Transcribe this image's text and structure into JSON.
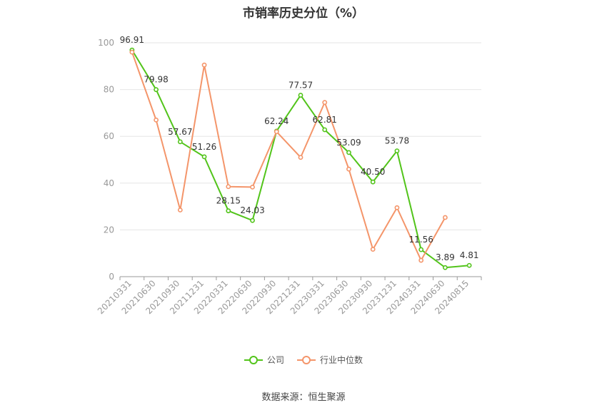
{
  "chart_data": {
    "type": "line",
    "title": "市销率历史分位（%）",
    "categories": [
      "20210331",
      "20210630",
      "20210930",
      "20211231",
      "20220331",
      "20220630",
      "20220930",
      "20221231",
      "20230331",
      "20230630",
      "20230930",
      "20231231",
      "20240331",
      "20240630",
      "20240815"
    ],
    "series": [
      {
        "name": "公司",
        "color": "#52c41a",
        "values": [
          96.91,
          79.98,
          57.67,
          51.26,
          28.15,
          24.03,
          62.24,
          77.57,
          62.81,
          53.09,
          40.5,
          53.78,
          11.56,
          3.89,
          4.81
        ],
        "labels": [
          "96.91",
          "79.98",
          "57.67",
          "51.26",
          "28.15",
          "24.03",
          "62.24",
          "77.57",
          "62.81",
          "53.09",
          "40.50",
          "53.78",
          "11.56",
          "3.89",
          "4.81"
        ]
      },
      {
        "name": "行业中位数",
        "color": "#f4956a",
        "values": [
          96.0,
          67.0,
          28.5,
          90.5,
          38.5,
          38.3,
          62.0,
          51.0,
          74.5,
          46.0,
          11.7,
          29.5,
          7.0,
          25.3,
          null
        ]
      }
    ],
    "yticks": [
      "0",
      "20",
      "40",
      "60",
      "80",
      "100"
    ],
    "ylim": [
      0,
      100
    ],
    "grid": true,
    "legend": "bottom-center"
  },
  "source": "数据来源：恒生聚源"
}
